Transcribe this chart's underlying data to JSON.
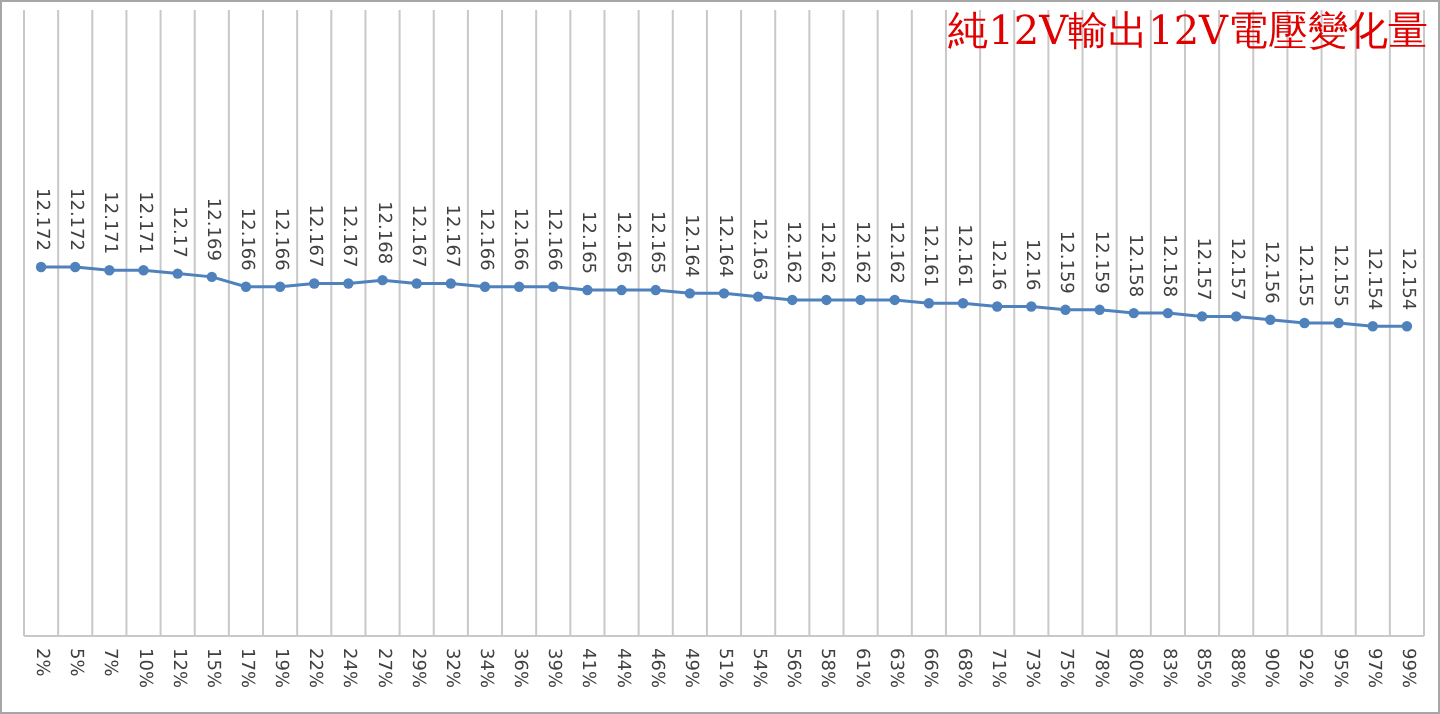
{
  "chart_data": {
    "type": "line",
    "title": "純12V輸出12V電壓變化量",
    "categories": [
      "2%",
      "5%",
      "7%",
      "10%",
      "12%",
      "15%",
      "17%",
      "19%",
      "22%",
      "24%",
      "27%",
      "29%",
      "32%",
      "34%",
      "36%",
      "39%",
      "41%",
      "44%",
      "46%",
      "49%",
      "51%",
      "54%",
      "56%",
      "58%",
      "61%",
      "63%",
      "66%",
      "68%",
      "71%",
      "73%",
      "75%",
      "78%",
      "80%",
      "83%",
      "85%",
      "88%",
      "90%",
      "92%",
      "95%",
      "97%",
      "99%"
    ],
    "series": [
      {
        "color": "#4f81bd",
        "values": [
          12.172,
          12.172,
          12.171,
          12.171,
          12.17,
          12.169,
          12.166,
          12.166,
          12.167,
          12.167,
          12.168,
          12.167,
          12.167,
          12.166,
          12.166,
          12.166,
          12.165,
          12.165,
          12.165,
          12.164,
          12.164,
          12.163,
          12.162,
          12.162,
          12.162,
          12.162,
          12.161,
          12.161,
          12.16,
          12.16,
          12.159,
          12.159,
          12.158,
          12.158,
          12.157,
          12.157,
          12.156,
          12.155,
          12.155,
          12.154,
          12.154
        ]
      }
    ],
    "ylim": [
      12.06,
      12.25
    ],
    "data_labels": true,
    "grid": "x",
    "marker": "circle",
    "line_style": "solid",
    "tick_labels": "x"
  }
}
